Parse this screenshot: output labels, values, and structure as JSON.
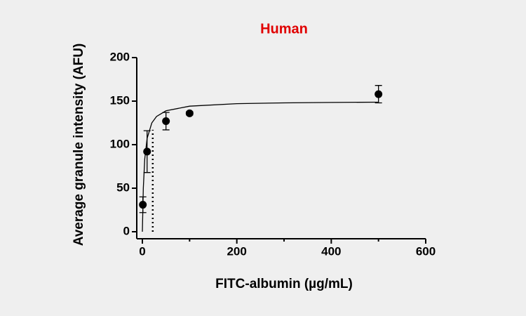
{
  "chart_data": {
    "type": "scatter",
    "title": "Human",
    "title_color": "#e00000",
    "x_label": "FITC-albumin (µg/mL)",
    "y_label": "Average granule intensity (AFU)",
    "x": [
      1,
      10,
      50,
      100,
      500
    ],
    "values": [
      31,
      92,
      127,
      136,
      158
    ],
    "errors": [
      9,
      24,
      10,
      2,
      10
    ],
    "color": "#000000",
    "fit": {
      "x": [
        0,
        2,
        5,
        10,
        20,
        30,
        50,
        100,
        200,
        300,
        400,
        500
      ],
      "values": [
        0,
        50,
        83.3,
        107.1,
        125,
        132.4,
        138.9,
        144.2,
        147.1,
        148,
        148.5,
        148.8
      ]
    },
    "reference_line": {
      "x": 22,
      "y": [
        0,
        117
      ]
    },
    "xlim": [
      0,
      600
    ],
    "xticks": [
      0,
      200,
      400,
      600
    ],
    "xminorticks": [
      100,
      300,
      500
    ],
    "ylim": [
      0,
      200
    ],
    "yticks": [
      0,
      50,
      100,
      150,
      200
    ]
  }
}
